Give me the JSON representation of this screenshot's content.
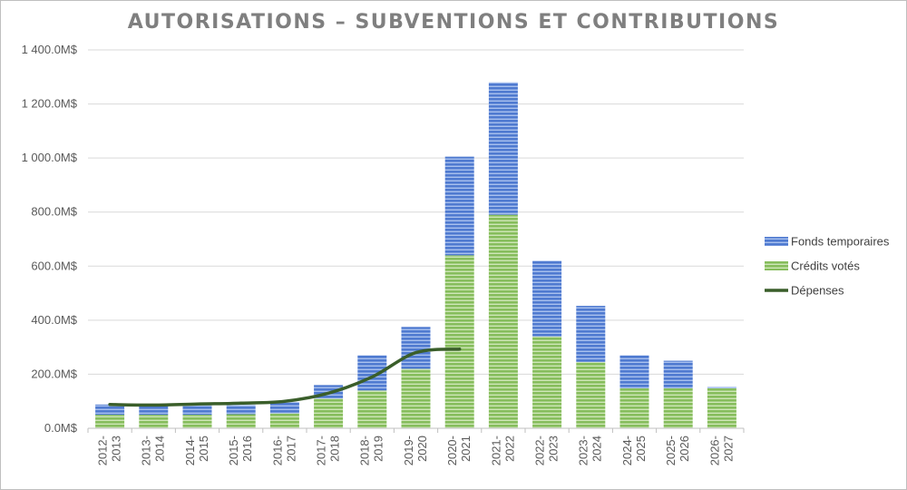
{
  "chart_data": {
    "type": "bar",
    "title": "AUTORISATIONS – SUBVENTIONS ET CONTRIBUTIONS",
    "xlabel": "",
    "ylabel": "",
    "ylim": [
      0,
      1400
    ],
    "y_tick_values": [
      0,
      200,
      400,
      600,
      800,
      1000,
      1200,
      1400
    ],
    "y_tick_labels": [
      "0.0M$",
      "200.0M$",
      "400.0M$",
      "600.0M$",
      "800.0M$",
      "1 000.0M$",
      "1 200.0M$",
      "1 400.0M$"
    ],
    "grid": true,
    "legend_position": "right",
    "stacked": true,
    "categories": [
      [
        "2012-",
        "2013"
      ],
      [
        "2013-",
        "2014"
      ],
      [
        "2014-",
        "2015"
      ],
      [
        "2015-",
        "2016"
      ],
      [
        "2016-",
        "2017"
      ],
      [
        "2017-",
        "2018"
      ],
      [
        "2018-",
        "2019"
      ],
      [
        "2019-",
        "2020"
      ],
      [
        "2020-",
        "2021"
      ],
      [
        "2021-",
        "2022"
      ],
      [
        "2022-",
        "2023"
      ],
      [
        "2023-",
        "2024"
      ],
      [
        "2024-",
        "2025"
      ],
      [
        "2025-",
        "2026"
      ],
      [
        "2026-",
        "2027"
      ]
    ],
    "series": [
      {
        "name": "Crédits votés",
        "kind": "bar",
        "color": "#8fc068",
        "values": [
          50,
          50,
          50,
          52,
          55,
          110,
          140,
          220,
          640,
          790,
          340,
          245,
          148,
          148,
          148
        ]
      },
      {
        "name": "Fonds temporaires",
        "kind": "bar",
        "color": "#5b82d1",
        "values": [
          38,
          35,
          36,
          34,
          42,
          50,
          130,
          155,
          365,
          490,
          280,
          208,
          122,
          102,
          5
        ]
      },
      {
        "name": "Dépenses",
        "kind": "line",
        "color": "#3a5e2a",
        "values": [
          88,
          86,
          90,
          93,
          100,
          130,
          190,
          280,
          293,
          null,
          null,
          null,
          null,
          null,
          null
        ]
      }
    ],
    "legend_order": [
      "Fonds temporaires",
      "Crédits votés",
      "Dépenses"
    ]
  }
}
